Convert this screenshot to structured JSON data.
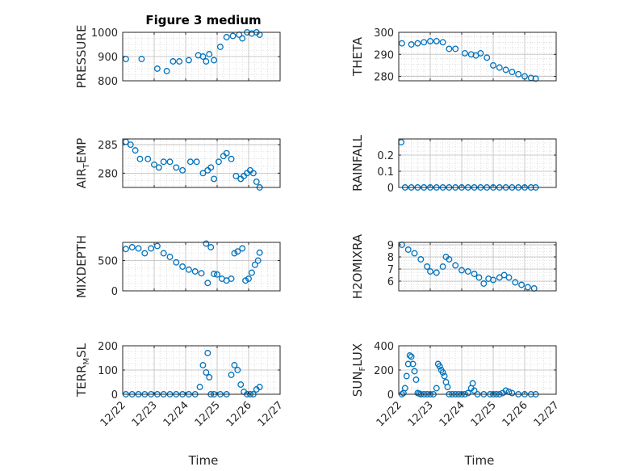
{
  "figure_title": "Figure 3 medium",
  "chart_data": [
    {
      "type": "scatter",
      "ylabel": "PRESSURE",
      "ylim": [
        800,
        1000
      ],
      "yticks": [
        800,
        900,
        1000
      ],
      "grid": true,
      "x": [
        22.1,
        22.6,
        23.1,
        23.4,
        23.6,
        23.8,
        24.1,
        24.4,
        24.55,
        24.65,
        24.75,
        24.9,
        25.1,
        25.3,
        25.5,
        25.7,
        25.8,
        25.95,
        26.1,
        26.25,
        26.35
      ],
      "y": [
        890,
        890,
        850,
        840,
        880,
        880,
        885,
        905,
        900,
        880,
        910,
        885,
        940,
        980,
        985,
        990,
        975,
        1000,
        995,
        1000,
        990
      ]
    },
    {
      "type": "scatter",
      "ylabel": "THETA",
      "ylim": [
        278,
        300
      ],
      "yticks": [
        280,
        290,
        300
      ],
      "grid": true,
      "x": [
        22.1,
        22.4,
        22.6,
        22.8,
        23.0,
        23.2,
        23.4,
        23.6,
        23.8,
        24.1,
        24.3,
        24.45,
        24.6,
        24.8,
        25.0,
        25.2,
        25.4,
        25.6,
        25.8,
        26.0,
        26.2,
        26.35
      ],
      "y": [
        295,
        294.5,
        295,
        295.5,
        296,
        296,
        295.5,
        292.5,
        292.5,
        290.5,
        290,
        289.5,
        290.5,
        288.5,
        285,
        284,
        283,
        282,
        281,
        280,
        279.3,
        279
      ]
    },
    {
      "type": "scatter",
      "ylabel": "AIR_TEMP",
      "ylabel_main": "AIR",
      "ylabel_sub": "T",
      "ylabel_rest": "EMP",
      "ylim": [
        277.5,
        286
      ],
      "yticks": [
        280,
        285
      ],
      "grid": true,
      "x": [
        22.1,
        22.25,
        22.4,
        22.55,
        22.8,
        23.0,
        23.15,
        23.3,
        23.5,
        23.7,
        23.9,
        24.15,
        24.35,
        24.55,
        24.7,
        24.8,
        24.9,
        25.05,
        25.2,
        25.3,
        25.45,
        25.6,
        25.75,
        25.85,
        25.95,
        26.05,
        26.15,
        26.25,
        26.35
      ],
      "y": [
        285.5,
        285,
        284,
        282.5,
        282.5,
        281.5,
        281,
        282,
        282,
        281,
        280.5,
        282,
        282,
        280,
        280.5,
        281,
        279,
        282,
        283,
        283.5,
        282.5,
        279.5,
        279,
        279.5,
        280,
        280.5,
        280,
        278.5,
        277.5
      ]
    },
    {
      "type": "scatter",
      "ylabel": "RAINFALL",
      "ylim": [
        0,
        0.3
      ],
      "yticks": [
        0,
        0.1,
        0.2
      ],
      "grid": true,
      "x": [
        22.08,
        22.2,
        22.4,
        22.6,
        22.8,
        23.0,
        23.2,
        23.4,
        23.6,
        23.8,
        24.0,
        24.2,
        24.4,
        24.6,
        24.8,
        25.0,
        25.2,
        25.4,
        25.6,
        25.8,
        26.0,
        26.2,
        26.35
      ],
      "y": [
        0.28,
        0,
        0,
        0,
        0,
        0,
        0,
        0,
        0,
        0,
        0,
        0,
        0,
        0,
        0,
        0,
        0,
        0,
        0,
        0,
        0,
        0,
        0
      ]
    },
    {
      "type": "scatter",
      "ylabel": "MIXDEPTH",
      "ylim": [
        0,
        800
      ],
      "yticks": [
        0,
        500
      ],
      "grid": true,
      "x": [
        22.1,
        22.3,
        22.5,
        22.7,
        22.9,
        23.1,
        23.3,
        23.5,
        23.7,
        23.9,
        24.1,
        24.3,
        24.5,
        24.65,
        24.7,
        24.8,
        24.9,
        25.0,
        25.15,
        25.3,
        25.45,
        25.55,
        25.65,
        25.8,
        25.9,
        26.0,
        26.1,
        26.2,
        26.3,
        26.35
      ],
      "y": [
        690,
        720,
        700,
        620,
        700,
        740,
        620,
        560,
        470,
        400,
        350,
        320,
        290,
        780,
        130,
        720,
        280,
        270,
        200,
        170,
        200,
        620,
        650,
        700,
        170,
        200,
        300,
        430,
        500,
        630
      ]
    },
    {
      "type": "scatter",
      "ylabel": "H2OMIXRA",
      "ylim": [
        5.2,
        9.2
      ],
      "yticks": [
        6,
        7,
        8,
        9
      ],
      "grid": true,
      "x": [
        22.1,
        22.3,
        22.5,
        22.7,
        22.9,
        23.0,
        23.2,
        23.4,
        23.5,
        23.6,
        23.8,
        24.0,
        24.2,
        24.4,
        24.55,
        24.7,
        24.85,
        25.0,
        25.2,
        25.35,
        25.5,
        25.7,
        25.9,
        26.1,
        26.3
      ],
      "y": [
        9,
        8.6,
        8.3,
        7.8,
        7.2,
        6.8,
        6.7,
        7.2,
        8,
        7.8,
        7.3,
        6.9,
        6.8,
        6.6,
        6.3,
        5.8,
        6.2,
        6.1,
        6.3,
        6.5,
        6.3,
        5.9,
        5.7,
        5.5,
        5.4
      ]
    },
    {
      "type": "scatter",
      "ylabel": "TERR_MSL",
      "ylabel_main": "TERR",
      "ylabel_sub": "M",
      "ylabel_rest": "SL",
      "ylim": [
        0,
        200
      ],
      "yticks": [
        0,
        100,
        200
      ],
      "grid": true,
      "x": [
        22.1,
        22.3,
        22.5,
        22.7,
        22.9,
        23.1,
        23.3,
        23.5,
        23.7,
        23.9,
        24.1,
        24.3,
        24.45,
        24.55,
        24.65,
        24.7,
        24.75,
        24.8,
        24.9,
        25.1,
        25.3,
        25.45,
        25.55,
        25.65,
        25.75,
        25.85,
        25.95,
        26.05,
        26.15,
        26.25,
        26.35
      ],
      "y": [
        0,
        0,
        0,
        0,
        0,
        0,
        0,
        0,
        0,
        0,
        0,
        0,
        30,
        120,
        90,
        170,
        70,
        0,
        0,
        0,
        0,
        80,
        120,
        100,
        40,
        10,
        0,
        0,
        0,
        20,
        30
      ]
    },
    {
      "type": "scatter",
      "ylabel": "SUN_FLUX",
      "ylabel_main": "SUN",
      "ylabel_sub": "F",
      "ylabel_rest": "LUX",
      "ylim": [
        0,
        400
      ],
      "yticks": [
        0,
        200,
        400
      ],
      "grid": true,
      "x": [
        22.1,
        22.15,
        22.2,
        22.25,
        22.3,
        22.35,
        22.4,
        22.45,
        22.5,
        22.55,
        22.6,
        22.65,
        22.7,
        22.8,
        22.9,
        23.0,
        23.1,
        23.2,
        23.25,
        23.3,
        23.35,
        23.4,
        23.45,
        23.5,
        23.55,
        23.6,
        23.7,
        23.8,
        23.9,
        24.0,
        24.1,
        24.2,
        24.3,
        24.35,
        24.4,
        24.5,
        24.7,
        24.9,
        25.0,
        25.1,
        25.2,
        25.3,
        25.4,
        25.5,
        25.6,
        25.8,
        26.0,
        26.2,
        26.35
      ],
      "y": [
        0,
        10,
        50,
        150,
        250,
        320,
        310,
        250,
        190,
        120,
        10,
        5,
        0,
        0,
        0,
        0,
        0,
        50,
        250,
        230,
        200,
        180,
        150,
        100,
        60,
        0,
        0,
        0,
        0,
        0,
        0,
        10,
        50,
        90,
        30,
        0,
        0,
        0,
        0,
        0,
        0,
        10,
        30,
        20,
        10,
        0,
        0,
        0,
        0
      ]
    }
  ],
  "x_axis": {
    "label": "Time",
    "range": [
      22,
      27
    ],
    "ticks": [
      22,
      23,
      24,
      25,
      26,
      27
    ],
    "tick_labels": [
      "12/22",
      "12/23",
      "12/24",
      "12/25",
      "12/26",
      "12/27"
    ]
  },
  "colors": {
    "marker": "#0072BD",
    "axis": "#262626",
    "grid": "#c8c8c8"
  }
}
